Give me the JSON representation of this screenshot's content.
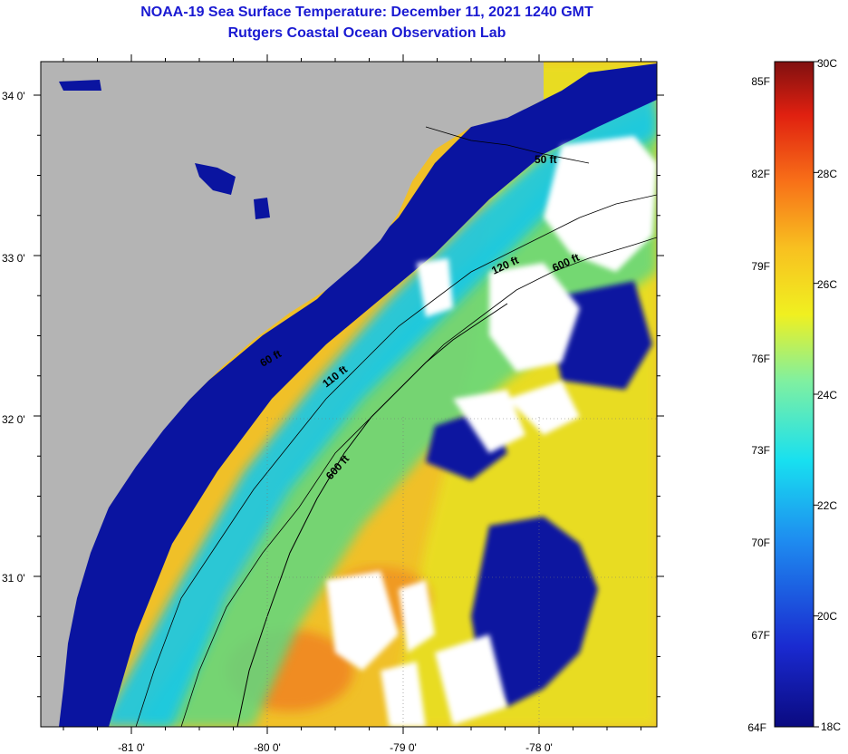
{
  "title": {
    "line1": "NOAA-19 Sea Surface Temperature:  December 11, 2021 1240 GMT",
    "line2": "Rutgers Coastal Ocean Observation Lab"
  },
  "axes": {
    "longitude_ticks": [
      {
        "value": -81,
        "label": "-81 0'"
      },
      {
        "value": -80,
        "label": "-80 0'"
      },
      {
        "value": -79,
        "label": "-79 0'"
      },
      {
        "value": -78,
        "label": "-78 0'"
      }
    ],
    "latitude_ticks": [
      {
        "value": 34,
        "label": "34 0'"
      },
      {
        "value": 33,
        "label": "33 0'"
      },
      {
        "value": 32,
        "label": "32 0'"
      },
      {
        "value": 31,
        "label": "31 0'"
      }
    ]
  },
  "contours": [
    {
      "label": "50 ft"
    },
    {
      "label": "120 ft"
    },
    {
      "label": "600 ft"
    },
    {
      "label": "60 ft"
    },
    {
      "label": "110 ft"
    },
    {
      "label": "600 ft"
    }
  ],
  "colorbar": {
    "min_c": 18,
    "max_c": 30,
    "fahrenheit_labels": [
      "85F",
      "82F",
      "79F",
      "76F",
      "73F",
      "70F",
      "67F",
      "64F"
    ],
    "celsius_labels": [
      "30C",
      "28C",
      "26C",
      "24C",
      "22C",
      "20C",
      "18C"
    ]
  },
  "colors": {
    "land": "#b4b4b4",
    "cloud": "#ffffff",
    "title": "#1a1ad2",
    "cold": "#0a0a8c",
    "warm": "#f0a828"
  }
}
